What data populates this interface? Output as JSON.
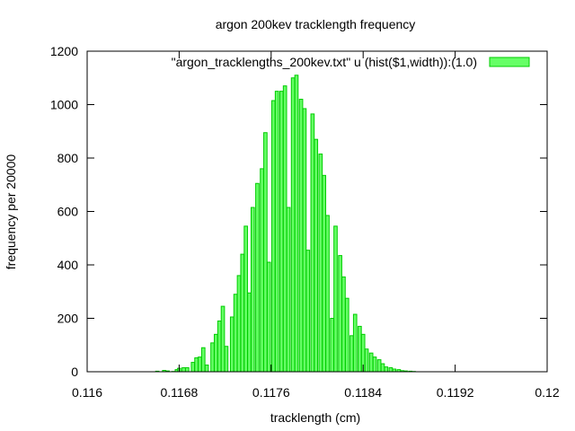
{
  "chart_data": {
    "type": "bar",
    "title": "argon 200kev tracklength frequency",
    "xlabel": "tracklength (cm)",
    "ylabel": "frequency per 20000",
    "xlim": [
      0.116,
      0.12
    ],
    "ylim": [
      0,
      1200
    ],
    "xticks": [
      "0.116",
      "0.1168",
      "0.1176",
      "0.1184",
      "0.1192",
      "0.12"
    ],
    "yticks": [
      "0",
      "200",
      "400",
      "600",
      "800",
      "1000",
      "1200"
    ],
    "grid": false,
    "legend_position": "top-right",
    "series": [
      {
        "name": "\"argon_tracklengths_200kev.txt\" u (hist($1,width)):(1.0)",
        "color": "#66ff66",
        "edge_color": "#00cc00",
        "bin_width": 2.86e-05,
        "x": [
          0.11661,
          0.11667,
          0.1167,
          0.11675,
          0.11678,
          0.1168,
          0.11684,
          0.11687,
          0.11692,
          0.11695,
          0.11698,
          0.11701,
          0.11704,
          0.11709,
          0.11712,
          0.11715,
          0.11718,
          0.11721,
          0.11726,
          0.11729,
          0.11732,
          0.11735,
          0.11738,
          0.11741,
          0.11744,
          0.11748,
          0.11752,
          0.11755,
          0.11758,
          0.11762,
          0.11765,
          0.11769,
          0.11772,
          0.11775,
          0.11779,
          0.11782,
          0.11786,
          0.11789,
          0.11792,
          0.11796,
          0.11799,
          0.11803,
          0.11806,
          0.11809,
          0.11813,
          0.11816,
          0.1182,
          0.11823,
          0.11826,
          0.1183,
          0.11833,
          0.11837,
          0.1184,
          0.11843,
          0.11847,
          0.1185,
          0.11854,
          0.11857,
          0.1186,
          0.11864,
          0.11867,
          0.11871,
          0.11874,
          0.11877,
          0.11881,
          0.11884,
          0.11888,
          0.11891,
          0.11894,
          0.11898,
          0.11901,
          0.11905,
          0.11908,
          0.11911,
          0.11915,
          0.11918,
          0.11922,
          0.11925
        ],
        "values": [
          2,
          5,
          3,
          1,
          8,
          13,
          15,
          15,
          35,
          52,
          55,
          90,
          25,
          108,
          140,
          190,
          245,
          95,
          205,
          290,
          360,
          440,
          545,
          295,
          615,
          705,
          760,
          895,
          410,
          1015,
          1050,
          1050,
          1070,
          615,
          1100,
          1110,
          1020,
          985,
          455,
          965,
          870,
          815,
          735,
          585,
          200,
          545,
          435,
          355,
          275,
          135,
          215,
          170,
          140,
          85,
          70,
          55,
          45,
          30,
          18,
          15,
          10,
          8,
          4,
          3,
          2,
          1,
          0,
          0,
          0,
          0,
          0,
          0,
          0,
          0,
          0,
          0,
          0,
          0
        ]
      }
    ]
  }
}
